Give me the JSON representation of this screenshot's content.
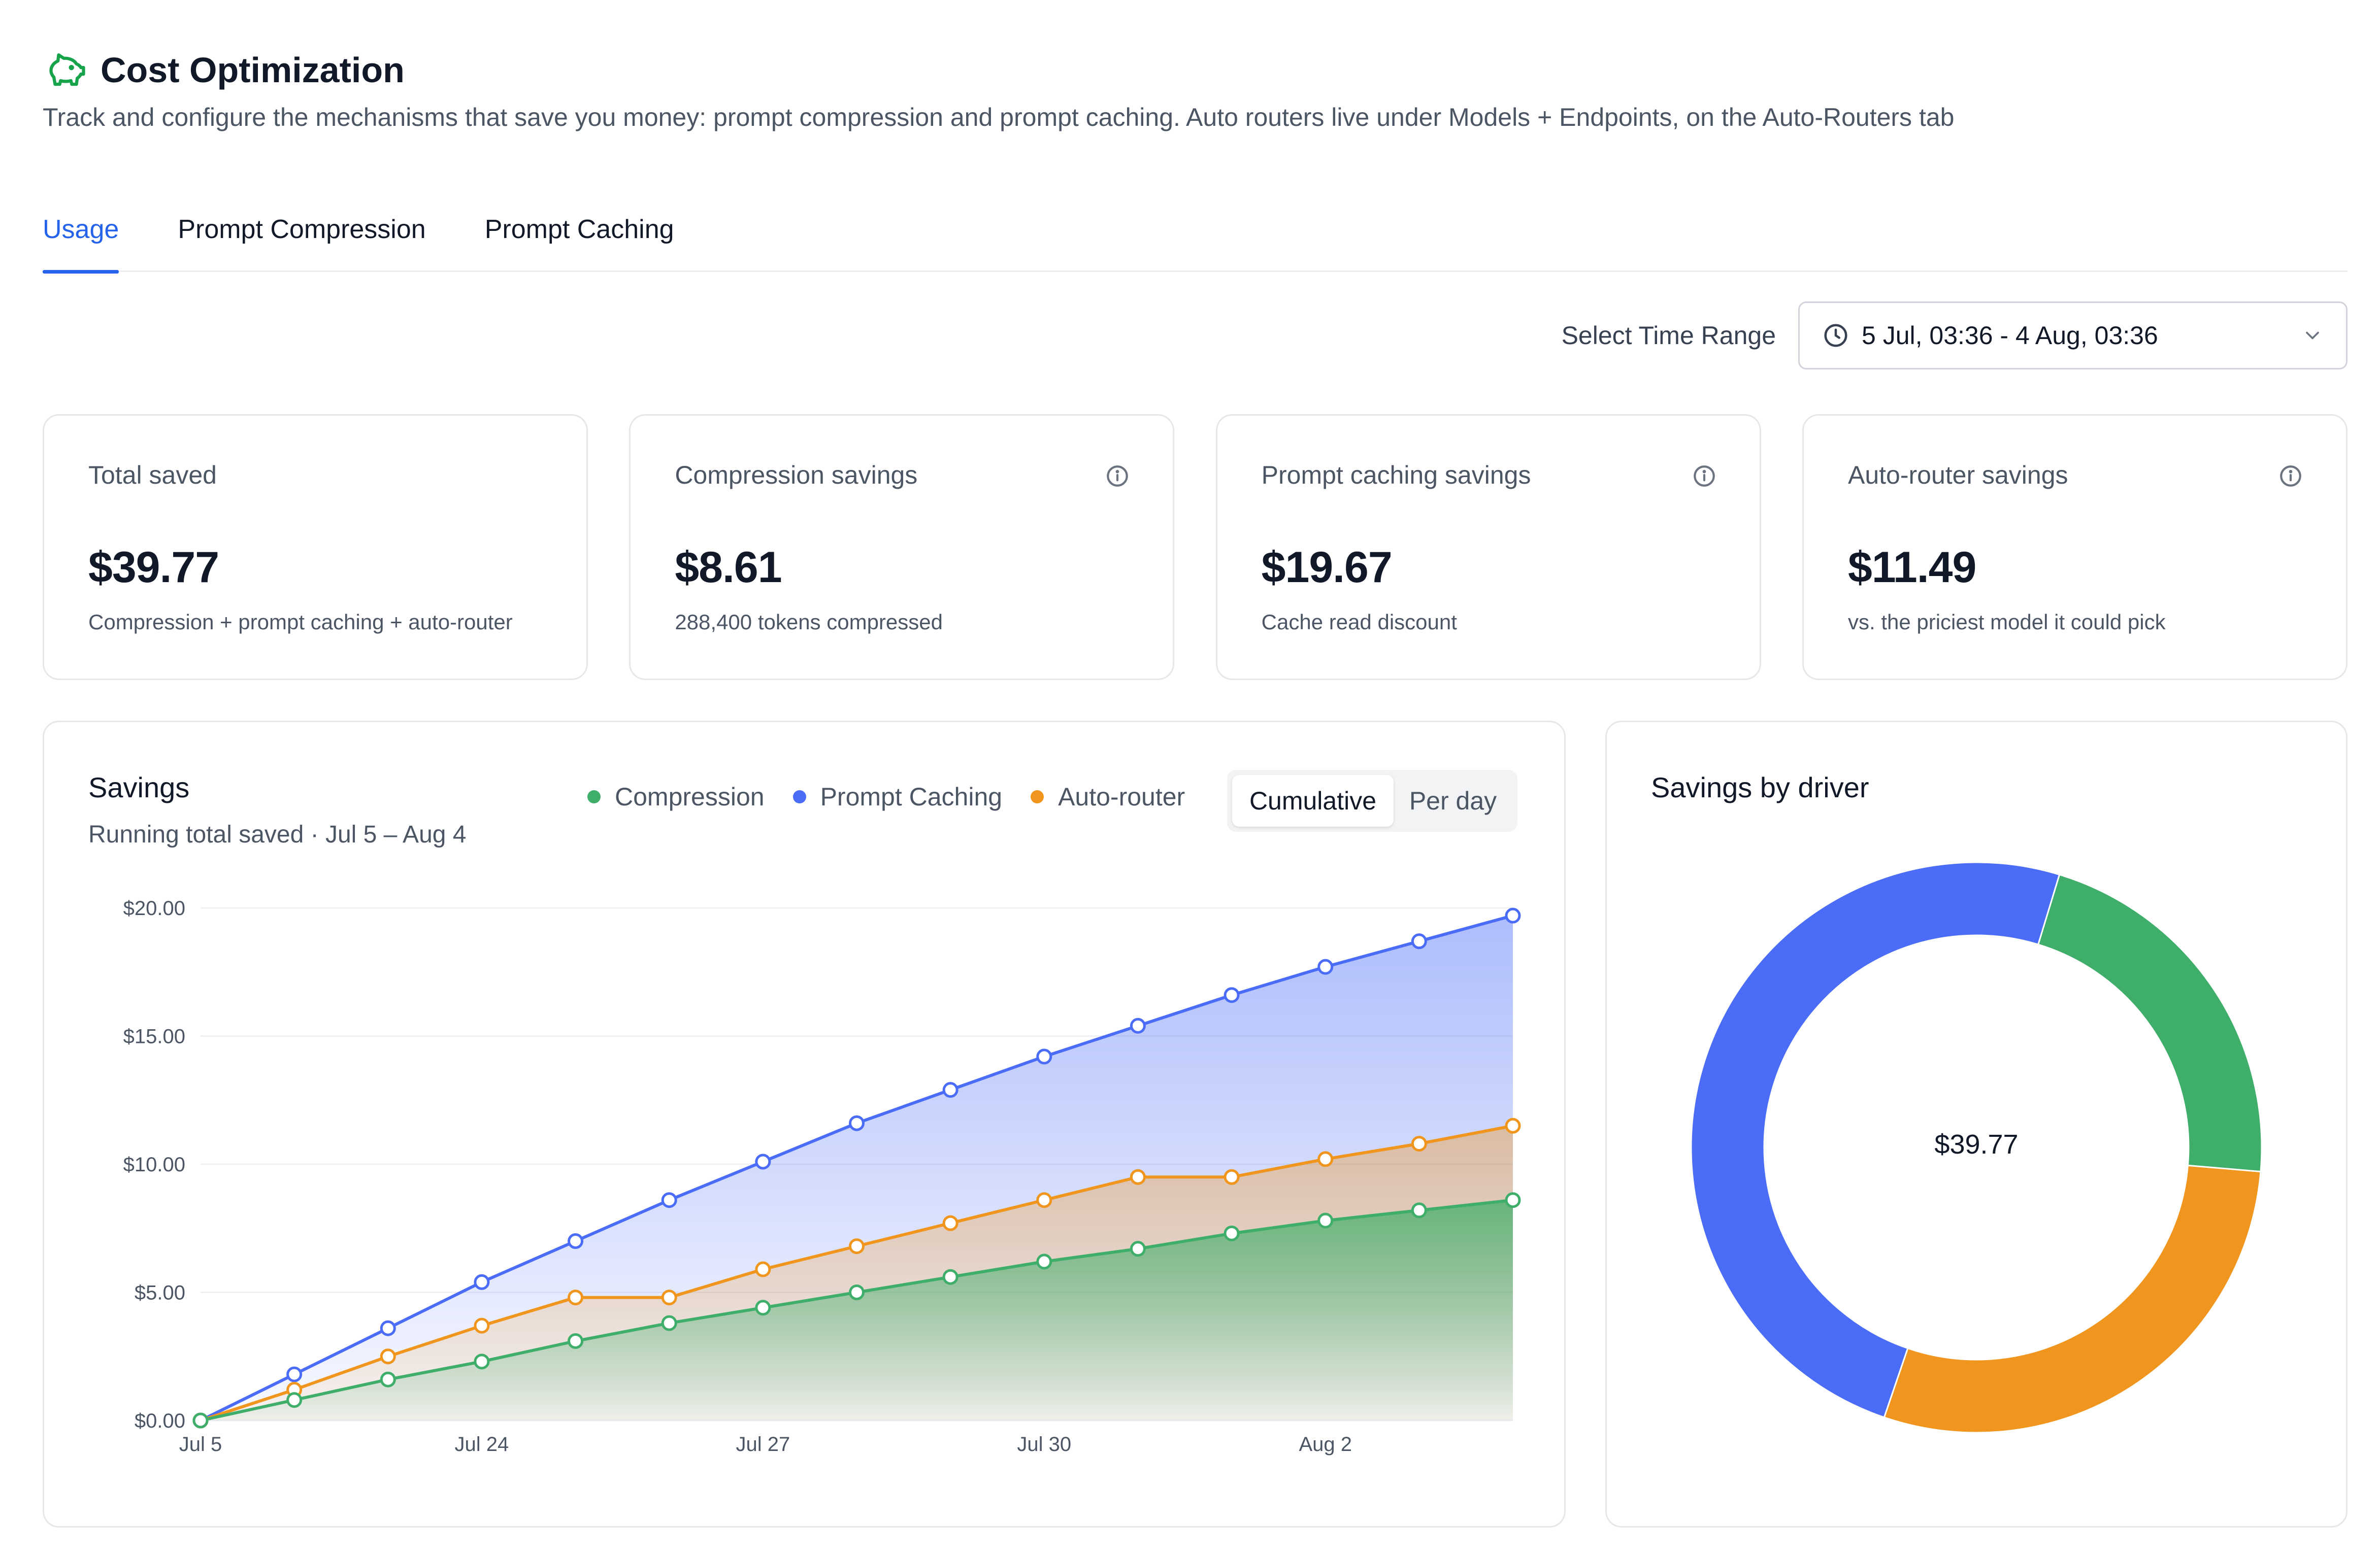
{
  "header": {
    "title": "Cost Optimization",
    "subtitle": "Track and configure the mechanisms that save you money: prompt compression and prompt caching. Auto routers live under Models + Endpoints, on the Auto-Routers tab"
  },
  "tabs": [
    {
      "label": "Usage",
      "active": true
    },
    {
      "label": "Prompt Compression",
      "active": false
    },
    {
      "label": "Prompt Caching",
      "active": false
    }
  ],
  "time_range": {
    "label": "Select Time Range",
    "value": "5 Jul, 03:36 - 4 Aug, 03:36"
  },
  "cards": [
    {
      "label": "Total saved",
      "value": "$39.77",
      "note": "Compression + prompt caching + auto-router",
      "info": false
    },
    {
      "label": "Compression savings",
      "value": "$8.61",
      "note": "288,400 tokens compressed",
      "info": true
    },
    {
      "label": "Prompt caching savings",
      "value": "$19.67",
      "note": "Cache read discount",
      "info": true
    },
    {
      "label": "Auto-router savings",
      "value": "$11.49",
      "note": "vs. the priciest model it could pick",
      "info": true
    }
  ],
  "savings_panel": {
    "title": "Savings",
    "subtitle": "Running total saved · Jul 5 – Aug 4",
    "legend": [
      {
        "name": "Compression",
        "color": "#3fae6a"
      },
      {
        "name": "Prompt Caching",
        "color": "#4a6cf7"
      },
      {
        "name": "Auto-router",
        "color": "#f0961e"
      }
    ],
    "toggle": {
      "active": "Cumulative",
      "inactive": "Per day"
    }
  },
  "driver_panel": {
    "title": "Savings by driver",
    "center_label": "$39.77"
  },
  "colors": {
    "compression": "#3fae6a",
    "caching": "#4a6cf7",
    "router": "#f0961e",
    "accent": "#2563eb"
  },
  "chart_data": [
    {
      "type": "area",
      "xlabel": "",
      "ylabel": "",
      "ylim": [
        0,
        20
      ],
      "yticks": [
        "$0.00",
        "$5.00",
        "$10.00",
        "$15.00",
        "$20.00"
      ],
      "x_tick_labels": [
        "Jul 5",
        "Jul 24",
        "Jul 27",
        "Jul 30",
        "Aug 2"
      ],
      "x_tick_indices": [
        0,
        3,
        6,
        9,
        12
      ],
      "points": 15,
      "series": [
        {
          "name": "Prompt Caching",
          "color": "#4a6cf7",
          "values": [
            0,
            1.8,
            3.6,
            5.4,
            7.0,
            8.6,
            10.1,
            11.6,
            12.9,
            14.2,
            15.4,
            16.6,
            17.7,
            18.7,
            19.7
          ]
        },
        {
          "name": "Auto-router",
          "color": "#f0961e",
          "values": [
            0,
            1.2,
            2.5,
            3.7,
            4.8,
            4.8,
            5.9,
            6.8,
            7.7,
            8.6,
            9.5,
            9.5,
            10.2,
            10.8,
            11.5
          ]
        },
        {
          "name": "Compression",
          "color": "#3fae6a",
          "values": [
            0,
            0.8,
            1.6,
            2.3,
            3.1,
            3.8,
            4.4,
            5.0,
            5.6,
            6.2,
            6.7,
            7.3,
            7.8,
            8.2,
            8.6
          ]
        }
      ]
    },
    {
      "type": "pie",
      "title": "",
      "donut": true,
      "categories": [
        "Compression",
        "Auto-router",
        "Prompt Caching"
      ],
      "values": [
        8.61,
        11.49,
        19.67
      ],
      "colors": [
        "#3fae6a",
        "#f0961e",
        "#4a6cf7"
      ]
    }
  ]
}
